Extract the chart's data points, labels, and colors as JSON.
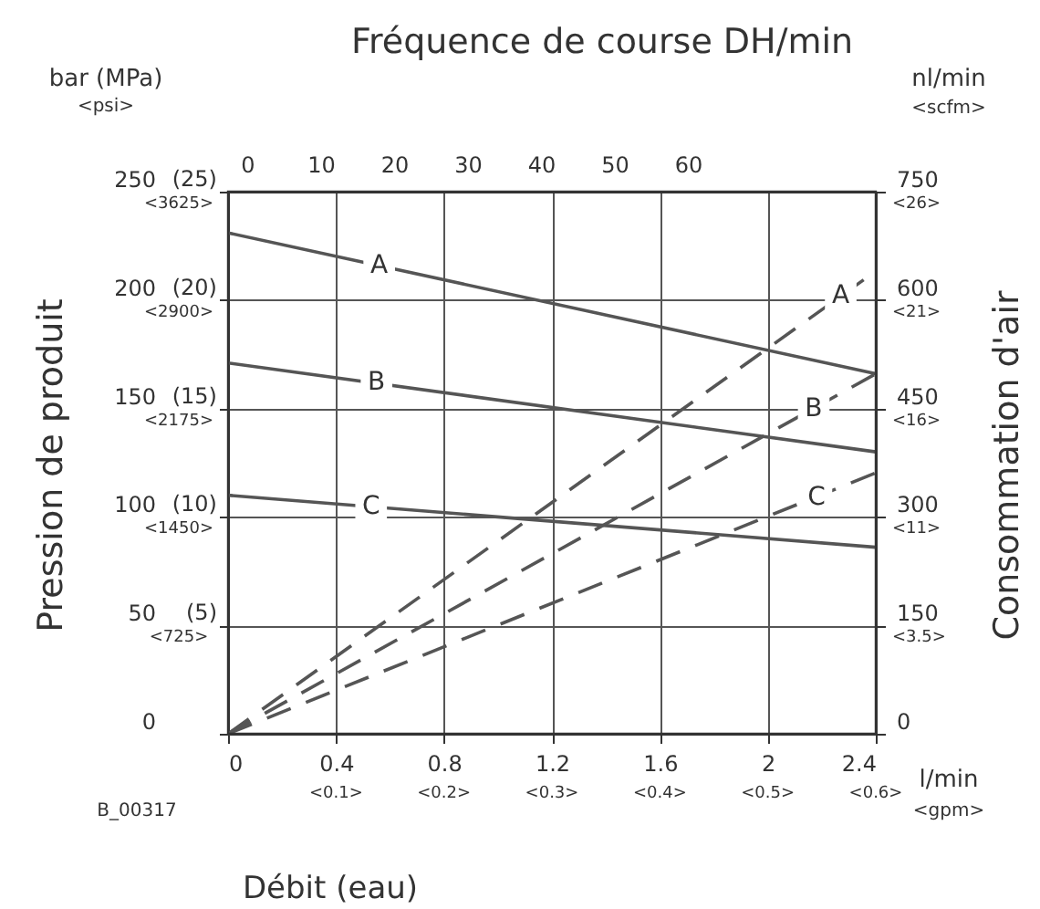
{
  "chart_data": {
    "type": "line",
    "x2label": "Fréquence de course DH/min",
    "xlabel": "Débit (eau)",
    "ylabel": "Pression de produit",
    "y2label": "Consommation d'air",
    "x": [
      0,
      2.4
    ],
    "series": [
      {
        "color": "#555555",
        "values": [
          231,
          166
        ],
        "line_style": "solid"
      },
      {
        "color": "#555555",
        "values": [
          171,
          130
        ],
        "line_style": "solid"
      },
      {
        "color": "#555555",
        "values": [
          110,
          86
        ],
        "line_style": "solid"
      },
      {
        "color": "#555555",
        "values": [
          0,
          640
        ],
        "line_style": "dashed",
        "axis": "y2"
      },
      {
        "color": "#555555",
        "values": [
          0,
          498
        ],
        "line_style": "dashed",
        "axis": "y2"
      },
      {
        "color": "#555555",
        "values": [
          0,
          361
        ],
        "line_style": "dashed",
        "axis": "y2"
      }
    ],
    "xlim": [
      0,
      2.4
    ],
    "xticks": [
      0,
      0.4,
      0.8,
      1.2,
      1.6,
      2,
      2.4
    ],
    "x2lim": [
      -2.6,
      85.6
    ],
    "x2ticks": [
      0,
      10,
      20,
      30,
      40,
      50,
      60
    ],
    "ylim": [
      0,
      250
    ],
    "yticks": [
      0,
      50,
      100,
      150,
      200,
      250
    ],
    "y2lim": [
      0,
      750
    ],
    "y2ticks": [
      0,
      150,
      300,
      450,
      600,
      750
    ],
    "grid": true,
    "marker": "none",
    "annotations": [
      {
        "text": "A",
        "x": 0.56,
        "y": 216
      },
      {
        "text": "B",
        "x": 0.55,
        "y": 162
      },
      {
        "text": "C",
        "x": 0.53,
        "y": 105
      },
      {
        "text": "A",
        "x": 2.27,
        "y": 202
      },
      {
        "text": "B",
        "x": 2.17,
        "y": 150
      },
      {
        "text": "C",
        "x": 2.18,
        "y": 109
      },
      "bar (MPa)",
      "<psi>",
      "nl/min",
      "<scfm>",
      "l/min",
      "<gpm>",
      "B_00317",
      "<0.1>",
      "<0.2>",
      "<0.3>",
      "<0.4>",
      "<0.5>",
      "<0.6>",
      "<725>",
      "<1450>",
      "<2175>",
      "<2900>",
      "<3625>",
      "<3.5>",
      "<11>",
      "<16>",
      "<21>",
      "<26>",
      "(5)",
      "(10)",
      "(15)",
      "(20)",
      "(25)"
    ]
  }
}
